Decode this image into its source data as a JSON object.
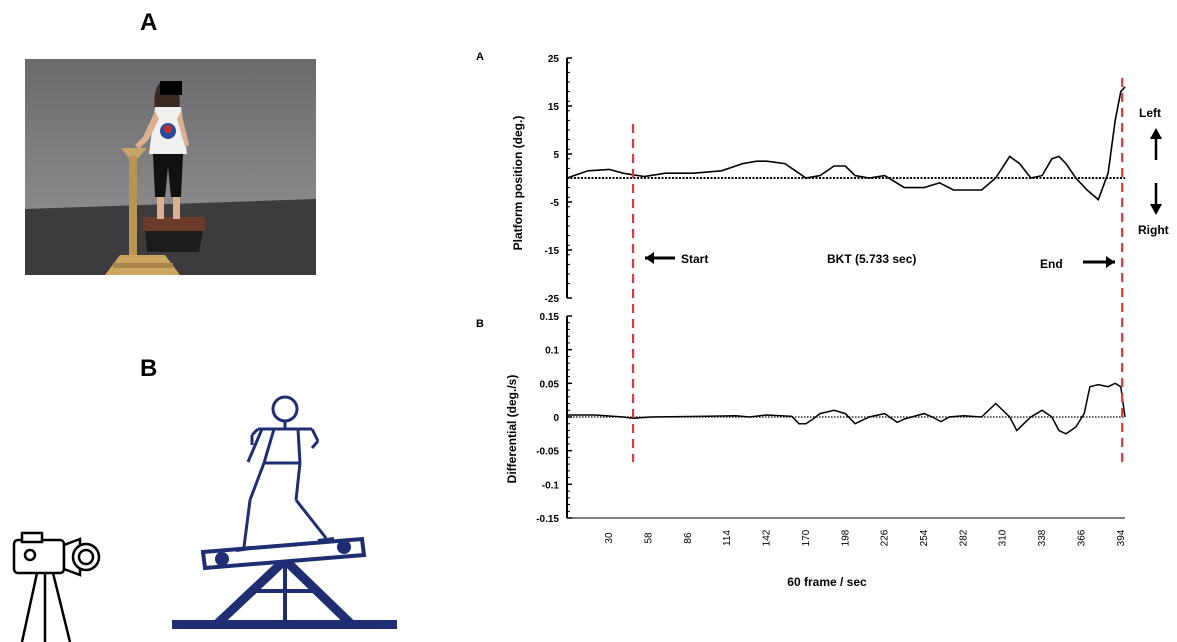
{
  "left_panel": {
    "label_a": "A",
    "label_b": "B"
  },
  "colors": {
    "marker": "#d93a3a",
    "stick_figure": "#1f2e72",
    "trace": "#000000"
  },
  "chart_data": [
    {
      "type": "line",
      "panel": "A",
      "ylabel": "Platform position  (deg.)",
      "ylim": [
        -25,
        25
      ],
      "yticks": [
        "25",
        "15",
        "5",
        "-5",
        "-15",
        "-25"
      ],
      "baseline": 0,
      "x": [
        0,
        15,
        30,
        40,
        55,
        70,
        90,
        110,
        125,
        135,
        142,
        155,
        165,
        170,
        180,
        190,
        198,
        205,
        215,
        226,
        240,
        254,
        265,
        275,
        282,
        295,
        305,
        315,
        322,
        330,
        338,
        345,
        350,
        355,
        362,
        370,
        378,
        385,
        390,
        394,
        397
      ],
      "values": [
        0,
        1.5,
        1.8,
        1.0,
        0.3,
        1.0,
        1.0,
        1.5,
        3.0,
        3.5,
        3.5,
        3.0,
        1.0,
        0,
        0.5,
        2.5,
        2.5,
        0.5,
        0,
        0.5,
        -2.0,
        -2.0,
        -1.0,
        -2.5,
        -2.5,
        -2.5,
        0,
        4.5,
        3.0,
        0,
        0.5,
        4.0,
        4.5,
        3.0,
        0,
        -2.5,
        -4.5,
        1.0,
        12.0,
        18.0,
        19.0
      ],
      "annotations": {
        "start": "Start",
        "duration": "BKT (5.733 sec)",
        "end": "End",
        "left": "Left",
        "right": "Right"
      },
      "markers_x": [
        47,
        395
      ]
    },
    {
      "type": "line",
      "panel": "B",
      "ylabel": "Differential (deg./s)",
      "ylim": [
        -0.15,
        0.15
      ],
      "yticks": [
        "0.15",
        "0.1",
        "0.05",
        "0",
        "-0.05",
        "-0.1",
        "-0.15"
      ],
      "baseline": 0,
      "x": [
        0,
        20,
        40,
        47,
        60,
        100,
        120,
        130,
        142,
        160,
        165,
        170,
        175,
        180,
        190,
        198,
        205,
        215,
        226,
        235,
        240,
        254,
        260,
        266,
        272,
        282,
        295,
        305,
        315,
        320,
        325,
        330,
        338,
        345,
        350,
        355,
        362,
        368,
        372,
        378,
        385,
        390,
        394,
        397
      ],
      "values": [
        0.003,
        0.003,
        0.0,
        -0.002,
        0.0,
        0.001,
        0.002,
        0.0,
        0.003,
        0.001,
        -0.01,
        -0.01,
        -0.003,
        0.005,
        0.01,
        0.005,
        -0.01,
        0.0,
        0.005,
        -0.008,
        -0.003,
        0.005,
        0.0,
        -0.007,
        0.0,
        0.002,
        0.0,
        0.02,
        0.0,
        -0.02,
        -0.01,
        0.0,
        0.01,
        0.0,
        -0.02,
        -0.025,
        -0.015,
        0.005,
        0.045,
        0.048,
        0.045,
        0.05,
        0.045,
        0.0
      ],
      "xticks": [
        "30",
        "58",
        "86",
        "114",
        "142",
        "170",
        "198",
        "226",
        "254",
        "282",
        "310",
        "338",
        "366",
        "394"
      ],
      "xtick_values": [
        30,
        58,
        86,
        114,
        142,
        170,
        198,
        226,
        254,
        282,
        310,
        338,
        366,
        394
      ],
      "xlim": [
        0,
        397
      ],
      "xlabel": "60  frame / sec"
    }
  ]
}
